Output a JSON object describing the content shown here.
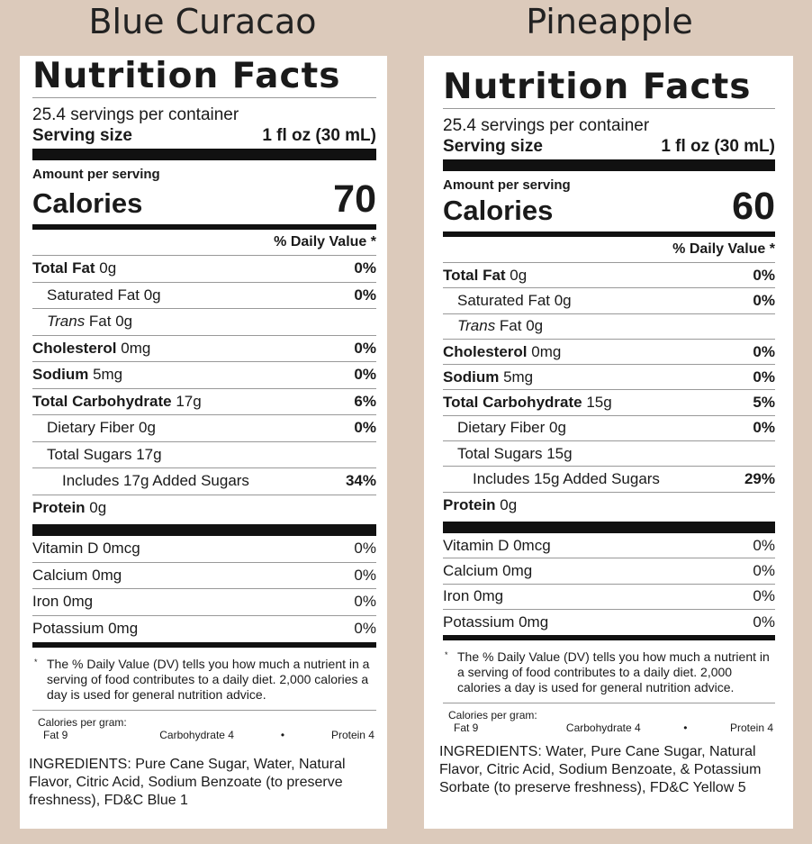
{
  "products": [
    {
      "name": "Blue Curacao",
      "nf_title": "Nutrition Facts",
      "servings": "25.4 servings per container",
      "serving_size_label": "Serving size",
      "serving_size_value": "1 fl oz (30 mL)",
      "amount_per_serving": "Amount per serving",
      "calories_label": "Calories",
      "calories_value": "70",
      "dv_header": "% Daily Value *",
      "total_fat": {
        "label": "Total Fat",
        "amount": " 0g",
        "pct": "0%"
      },
      "saturated_fat": {
        "label": "Saturated Fat 0g",
        "pct": "0%"
      },
      "trans_fat": {
        "label_italic": "Trans",
        "label_rest": " Fat 0g"
      },
      "cholesterol": {
        "label": "Cholesterol",
        "amount": " 0mg",
        "pct": "0%"
      },
      "sodium": {
        "label": "Sodium",
        "amount": " 5mg",
        "pct": "0%"
      },
      "total_carb": {
        "label": "Total Carbohydrate",
        "amount": " 17g",
        "pct": "6%"
      },
      "dietary_fiber": {
        "label": "Dietary Fiber 0g",
        "pct": "0%"
      },
      "total_sugars": {
        "label": "Total Sugars 17g"
      },
      "added_sugars": {
        "label": "Includes 17g Added Sugars",
        "pct": "34%"
      },
      "protein": {
        "label": "Protein",
        "amount": " 0g"
      },
      "vitamin_d": {
        "label": "Vitamin D 0mcg",
        "pct": "0%"
      },
      "calcium": {
        "label": "Calcium 0mg",
        "pct": "0%"
      },
      "iron": {
        "label": "Iron 0mg",
        "pct": "0%"
      },
      "potassium": {
        "label": "Potassium 0mg",
        "pct": "0%"
      },
      "footnote_star": "*",
      "footnote": "The % Daily Value (DV) tells you how much a nutrient in a serving of food contributes to a daily diet. 2,000 calories a day is used for general nutrition advice.",
      "cal_per_gram": "Calories per gram:",
      "fat_per_gram": "Fat 9",
      "carb_per_gram": "Carbohydrate 4",
      "protein_per_gram": "Protein 4",
      "bullet": "•",
      "ingredients": "INGREDIENTS: Pure Cane Sugar, Water, Natural Flavor, Citric Acid, Sodium Benzoate (to preserve freshness), FD&C Blue 1"
    },
    {
      "name": "Pineapple",
      "nf_title": "Nutrition Facts",
      "servings": "25.4 servings per container",
      "serving_size_label": "Serving size",
      "serving_size_value": "1 fl oz (30 mL)",
      "amount_per_serving": "Amount per serving",
      "calories_label": "Calories",
      "calories_value": "60",
      "dv_header": "% Daily Value *",
      "total_fat": {
        "label": "Total Fat",
        "amount": " 0g",
        "pct": "0%"
      },
      "saturated_fat": {
        "label": "Saturated Fat 0g",
        "pct": "0%"
      },
      "trans_fat": {
        "label_italic": "Trans",
        "label_rest": " Fat 0g"
      },
      "cholesterol": {
        "label": "Cholesterol",
        "amount": " 0mg",
        "pct": "0%"
      },
      "sodium": {
        "label": "Sodium",
        "amount": " 5mg",
        "pct": "0%"
      },
      "total_carb": {
        "label": "Total Carbohydrate",
        "amount": " 15g",
        "pct": "5%"
      },
      "dietary_fiber": {
        "label": "Dietary Fiber 0g",
        "pct": "0%"
      },
      "total_sugars": {
        "label": "Total Sugars 15g"
      },
      "added_sugars": {
        "label": "Includes 15g Added Sugars",
        "pct": "29%"
      },
      "protein": {
        "label": "Protein",
        "amount": " 0g"
      },
      "vitamin_d": {
        "label": "Vitamin D 0mcg",
        "pct": "0%"
      },
      "calcium": {
        "label": "Calcium 0mg",
        "pct": "0%"
      },
      "iron": {
        "label": "Iron 0mg",
        "pct": "0%"
      },
      "potassium": {
        "label": "Potassium 0mg",
        "pct": "0%"
      },
      "footnote_star": "*",
      "footnote": "The % Daily Value (DV) tells you how much a nutrient in a serving of food contributes to a daily diet. 2,000 calories a day is used for general nutrition advice.",
      "cal_per_gram": "Calories per gram:",
      "fat_per_gram": "Fat 9",
      "carb_per_gram": "Carbohydrate 4",
      "protein_per_gram": "Protein 4",
      "bullet": "•",
      "ingredients": "INGREDIENTS: Water, Pure Cane Sugar, Natural Flavor, Citric Acid, Sodium Benzoate, & Potassium Sorbate (to preserve freshness), FD&C Yellow 5"
    }
  ]
}
